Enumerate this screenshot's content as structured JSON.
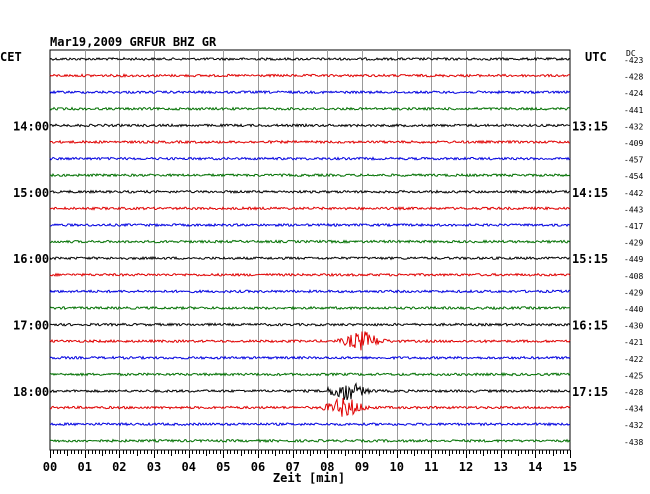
{
  "chart_data": {
    "type": "line",
    "title": "Mar19,2009   GRFUR BHZ GR",
    "left_timezone": "CET",
    "right_timezone": "UTC",
    "dc_header": "DC",
    "xlabel": "Zeit [min]",
    "x_ticks": [
      "00",
      "01",
      "02",
      "03",
      "04",
      "05",
      "06",
      "07",
      "08",
      "09",
      "10",
      "11",
      "12",
      "13",
      "14",
      "15"
    ],
    "xlim": [
      0,
      15
    ],
    "grid": true,
    "left_hour_labels": [
      "14:00",
      "15:00",
      "16:00",
      "17:00",
      "18:00"
    ],
    "right_hour_labels": [
      "13:15",
      "14:15",
      "15:15",
      "16:15",
      "17:15"
    ],
    "trace_colors": [
      "#000000",
      "#e00000",
      "#0000e0",
      "#007000"
    ],
    "traces": [
      {
        "dc": "-423",
        "color": "#000000"
      },
      {
        "dc": "-428",
        "color": "#e00000"
      },
      {
        "dc": "-424",
        "color": "#0000e0"
      },
      {
        "dc": "-441",
        "color": "#007000"
      },
      {
        "dc": "-432",
        "color": "#000000"
      },
      {
        "dc": "-409",
        "color": "#e00000"
      },
      {
        "dc": "-457",
        "color": "#0000e0"
      },
      {
        "dc": "-454",
        "color": "#007000"
      },
      {
        "dc": "-442",
        "color": "#000000"
      },
      {
        "dc": "-443",
        "color": "#e00000"
      },
      {
        "dc": "-417",
        "color": "#0000e0"
      },
      {
        "dc": "-429",
        "color": "#007000"
      },
      {
        "dc": "-449",
        "color": "#000000"
      },
      {
        "dc": "-408",
        "color": "#e00000"
      },
      {
        "dc": "-429",
        "color": "#0000e0"
      },
      {
        "dc": "-440",
        "color": "#007000"
      },
      {
        "dc": "-430",
        "color": "#000000"
      },
      {
        "dc": "-421",
        "color": "#e00000"
      },
      {
        "dc": "-422",
        "color": "#0000e0"
      },
      {
        "dc": "-425",
        "color": "#007000"
      },
      {
        "dc": "-428",
        "color": "#000000"
      },
      {
        "dc": "-434",
        "color": "#e00000"
      },
      {
        "dc": "-432",
        "color": "#0000e0"
      },
      {
        "dc": "-438",
        "color": "#007000"
      }
    ],
    "events": [
      {
        "trace": 17,
        "minute": 9.0
      },
      {
        "trace": 20,
        "minute": 8.55
      },
      {
        "trace": 21,
        "minute": 8.5
      }
    ]
  }
}
